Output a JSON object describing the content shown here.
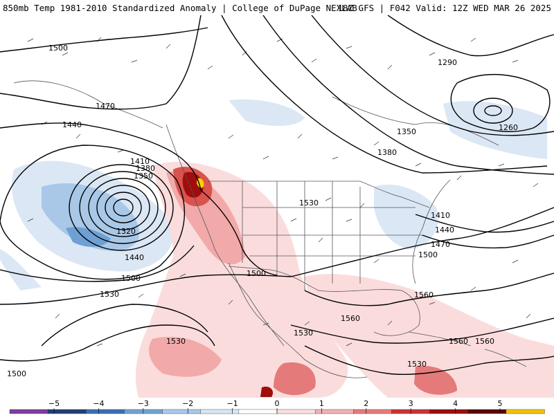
{
  "header": {
    "product": "850mb Temp 1981-2010 Standardized Anomaly | College of DuPage NEXLAB",
    "run": "18Z GFS | F042 Valid: 12Z WED MAR 26 2025"
  },
  "contours": {
    "height_labels": [
      "1500",
      "1470",
      "1440",
      "1410",
      "1380",
      "1350",
      "1320",
      "1440",
      "1500",
      "1530",
      "1530",
      "1500",
      "1500",
      "1530",
      "1530",
      "1560",
      "1560",
      "1530",
      "1560",
      "1290",
      "1260",
      "1350",
      "1380",
      "1410",
      "1440",
      "1470",
      "1500",
      "1560"
    ],
    "color": "#000000"
  },
  "colorbar": {
    "ticks": [
      "−5",
      "−4",
      "−3",
      "−2",
      "−1",
      "0",
      "1",
      "2",
      "3",
      "4",
      "5"
    ],
    "colors": [
      "#7b3f9e",
      "#1f3f7a",
      "#3b6fb3",
      "#6fa3d6",
      "#a9c9ea",
      "#d8e7f5",
      "#ffffff",
      "#fbe0e0",
      "#f4b0b0",
      "#e57a7a",
      "#cc3333",
      "#990f0f",
      "#5c0000",
      "#f2c200"
    ]
  },
  "anomaly_colors": {
    "warm_light": "#fbdcdc",
    "warm_mid": "#f2a9a9",
    "warm_strong": "#d9534f",
    "warm_extreme": "#a00d0d",
    "warm_peak": "#f7d000",
    "cold_light": "#dbe7f4",
    "cold_mid": "#a9c8e8",
    "cold_strong": "#6fa0d4"
  }
}
